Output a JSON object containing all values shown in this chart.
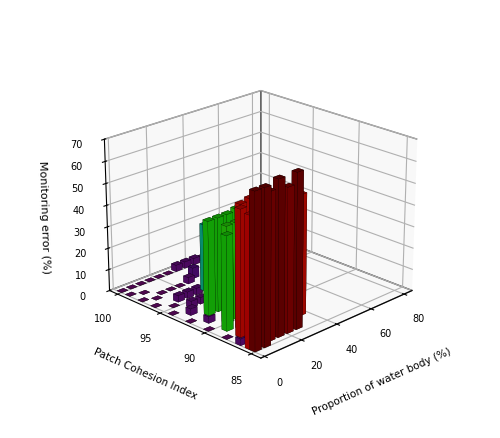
{
  "xlabel": "Proportion of water body (%)",
  "ylabel": "Patch Cohesion Index",
  "zlabel": "Monitoring error (%)",
  "x_ticks": [
    0,
    20,
    40,
    60,
    80
  ],
  "y_ticks": [
    85,
    90,
    95,
    100
  ],
  "zlim": [
    0,
    70
  ],
  "z_ticks": [
    0,
    10,
    20,
    30,
    40,
    50,
    60,
    70
  ],
  "figsize": [
    5.0,
    4.39
  ],
  "dpi": 100,
  "bar_data": {
    "x_vals": [
      0,
      0,
      0,
      0,
      0,
      0,
      0,
      0,
      0,
      0,
      0,
      5,
      5,
      5,
      5,
      5,
      5,
      5,
      5,
      5,
      5,
      10,
      10,
      10,
      10,
      10,
      10,
      10,
      10,
      10,
      15,
      15,
      15,
      15,
      15,
      15,
      15,
      15,
      15,
      20,
      20,
      20,
      20,
      20,
      20,
      20,
      20,
      20,
      25,
      25,
      25,
      25,
      25,
      25,
      25,
      25,
      25,
      30,
      30,
      30,
      30,
      30,
      30,
      30,
      30,
      35,
      35,
      35,
      35,
      35,
      35,
      35,
      40,
      40,
      40,
      40,
      40,
      40,
      45,
      45,
      45,
      45,
      45,
      50,
      50,
      50,
      50,
      50,
      55,
      55,
      55,
      55,
      60,
      60,
      60,
      60,
      65,
      65,
      65,
      70,
      70,
      70,
      75,
      75,
      80,
      80
    ],
    "y_vals": [
      85.0,
      85.5,
      86.5,
      88.0,
      90.0,
      92.0,
      94.0,
      96.0,
      97.5,
      99.0,
      100.0,
      85.0,
      86.0,
      87.5,
      89.0,
      91.0,
      93.0,
      95.0,
      97.0,
      98.5,
      100.0,
      85.5,
      87.0,
      88.5,
      90.0,
      92.0,
      94.0,
      95.5,
      97.5,
      100.0,
      85.5,
      87.0,
      88.5,
      90.0,
      92.0,
      94.0,
      95.5,
      97.5,
      100.0,
      85.5,
      87.0,
      88.5,
      90.0,
      92.0,
      94.0,
      95.5,
      97.5,
      100.0,
      85.5,
      87.0,
      88.5,
      90.0,
      92.0,
      94.0,
      95.5,
      97.5,
      100.0,
      86.5,
      88.0,
      90.0,
      92.0,
      94.0,
      96.0,
      98.0,
      100.0,
      87.0,
      89.0,
      91.0,
      93.0,
      95.0,
      97.5,
      100.0,
      88.0,
      90.0,
      92.0,
      95.0,
      97.0,
      100.0,
      89.0,
      91.0,
      93.5,
      96.0,
      100.0,
      90.0,
      92.5,
      95.0,
      97.5,
      100.0,
      92.0,
      95.0,
      97.5,
      100.0,
      93.0,
      95.5,
      97.5,
      100.0,
      95.0,
      97.5,
      100.0,
      96.0,
      98.0,
      100.0,
      98.0,
      100.0,
      99.0,
      100.0
    ],
    "z_vals": [
      70,
      59,
      3,
      0,
      0,
      0,
      0,
      0,
      0,
      0,
      0,
      70,
      59,
      57,
      43,
      3,
      3,
      0,
      0,
      0,
      0,
      66,
      58,
      56,
      44,
      43,
      3,
      3,
      0,
      0,
      70,
      59,
      57,
      44,
      43,
      3,
      3,
      0,
      0,
      65,
      60,
      57,
      44,
      43,
      3,
      3,
      0,
      0,
      70,
      59,
      53,
      45,
      44,
      33,
      31,
      3,
      0,
      59,
      55,
      44,
      33,
      31,
      19,
      5,
      3,
      55,
      52,
      44,
      32,
      29,
      15,
      3,
      44,
      32,
      30,
      18,
      14,
      3,
      32,
      25,
      18,
      12,
      2,
      19,
      13,
      10,
      7,
      2,
      13,
      9,
      5,
      2,
      10,
      7,
      4,
      2,
      7,
      4,
      2,
      5,
      3,
      2,
      3,
      2,
      2,
      1
    ]
  }
}
